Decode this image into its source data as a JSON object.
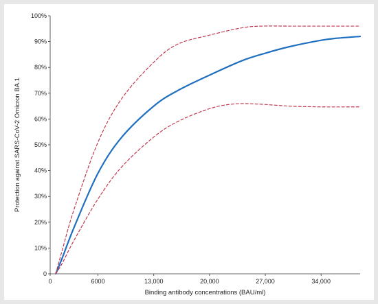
{
  "chart_data": {
    "type": "line",
    "title": "",
    "xlabel": "Binding antibody concentrations (BAU/ml)",
    "ylabel": "Protection against SARS-CoV-2 Omicron BA.1",
    "xlim": [
      0,
      38900
    ],
    "ylim": [
      0,
      100
    ],
    "x_ticks": [
      0,
      6000,
      13000,
      20000,
      27000,
      34000
    ],
    "x_tick_labels": [
      "0",
      "6000",
      "13,000",
      "20,000",
      "27,000",
      "34,000"
    ],
    "y_ticks": [
      0,
      10,
      20,
      30,
      40,
      50,
      60,
      70,
      80,
      90,
      100
    ],
    "y_tick_labels": [
      "0",
      "10%",
      "20%",
      "30%",
      "40%",
      "50%",
      "60%",
      "70%",
      "80%",
      "90%",
      "100%"
    ],
    "grid": false,
    "legend": "none",
    "series": [
      {
        "style": "solid",
        "color": "#1f6fc0",
        "x": [
          700,
          1500,
          3000,
          6000,
          9000,
          13000,
          16000,
          20000,
          24000,
          27000,
          30000,
          34000,
          36000,
          38900
        ],
        "y": [
          0,
          6,
          18,
          39,
          53,
          65,
          71,
          77,
          82.5,
          85.5,
          88,
          90.5,
          91.3,
          92
        ]
      },
      {
        "style": "dashed",
        "color": "#c0394f",
        "x": [
          700,
          1500,
          3000,
          6000,
          9000,
          13000,
          16000,
          20000,
          24000,
          26500,
          30000,
          34000,
          38900
        ],
        "y": [
          0,
          9,
          25,
          51,
          68,
          82,
          89,
          92.5,
          95.3,
          96,
          96,
          96,
          96
        ]
      },
      {
        "style": "dashed",
        "color": "#c0394f",
        "x": [
          700,
          1500,
          3000,
          6000,
          9000,
          13000,
          16000,
          20000,
          23000,
          26000,
          30000,
          34000,
          38900
        ],
        "y": [
          0,
          4,
          13,
          29,
          41.5,
          53,
          59,
          64,
          65.8,
          65.8,
          65,
          64.7,
          64.7
        ]
      }
    ]
  }
}
